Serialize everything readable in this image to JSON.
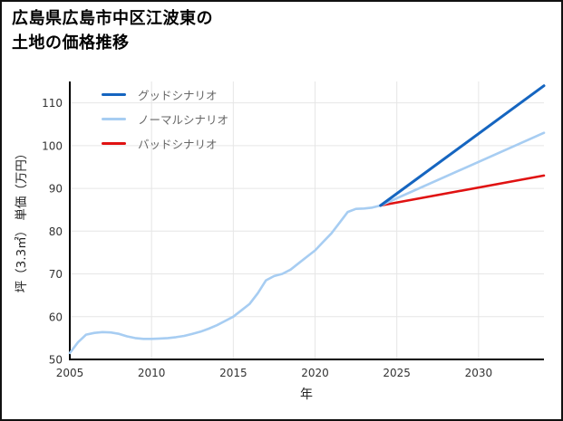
{
  "page": {
    "background": "#ffffff",
    "border_color": "#111111"
  },
  "chart_data": {
    "type": "line",
    "title": "広島県広島市中区江波東の\n土地の価格推移",
    "xlabel": "年",
    "ylabel": "坪（3.3㎡） 単価（万円）",
    "xlim": [
      2005,
      2034
    ],
    "ylim": [
      50,
      115
    ],
    "xticks": [
      2005,
      2010,
      2015,
      2020,
      2025,
      2030
    ],
    "yticks": [
      50,
      60,
      70,
      80,
      90,
      100,
      110
    ],
    "grid": true,
    "legend_position": "top-left",
    "colors": {
      "grid": "#e6e6e6",
      "axis": "#000000",
      "tick_label": "#333333",
      "good": "#1565c0",
      "normal": "#a7cdf2",
      "bad": "#e01212"
    },
    "history": {
      "color": "#a7cdf2",
      "x": [
        2005,
        2005.5,
        2006,
        2006.5,
        2007,
        2007.5,
        2008,
        2008.5,
        2009,
        2009.5,
        2010,
        2010.5,
        2011,
        2011.5,
        2012,
        2012.5,
        2013,
        2013.5,
        2014,
        2014.5,
        2015,
        2015.5,
        2016,
        2016.5,
        2017,
        2017.5,
        2018,
        2018.5,
        2019,
        2019.5,
        2020,
        2020.5,
        2021,
        2021.5,
        2022,
        2022.5,
        2023,
        2023.5,
        2024
      ],
      "y": [
        51.5,
        54,
        55.8,
        56.2,
        56.4,
        56.3,
        56,
        55.4,
        55,
        54.8,
        54.8,
        54.9,
        55,
        55.2,
        55.5,
        56,
        56.5,
        57.2,
        58,
        59,
        60,
        61.5,
        63,
        65.5,
        68.5,
        69.5,
        70,
        71,
        72.5,
        74,
        75.5,
        77.5,
        79.5,
        82,
        84.5,
        85.2,
        85.3,
        85.5,
        86
      ]
    },
    "series": [
      {
        "name": "グッドシナリオ",
        "color": "#1565c0",
        "x": [
          2024,
          2034
        ],
        "y": [
          86,
          114
        ]
      },
      {
        "name": "ノーマルシナリオ",
        "color": "#a7cdf2",
        "x": [
          2024,
          2034
        ],
        "y": [
          86,
          103
        ]
      },
      {
        "name": "バッドシナリオ",
        "color": "#e01212",
        "x": [
          2024,
          2034
        ],
        "y": [
          86,
          93
        ]
      }
    ]
  }
}
